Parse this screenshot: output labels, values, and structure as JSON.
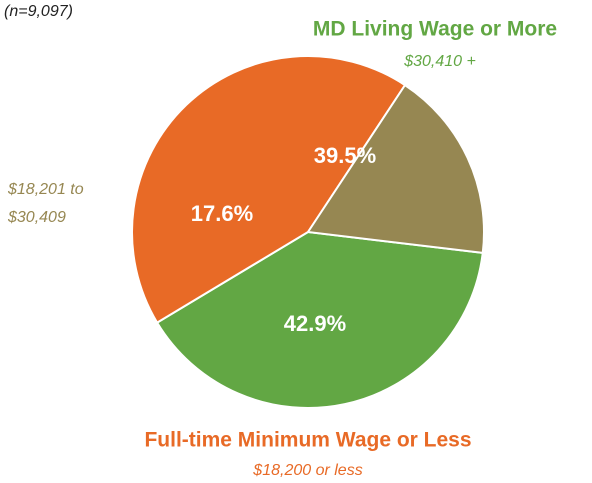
{
  "chart_data": {
    "type": "pie",
    "note": "(n=9,097)",
    "categories": [
      "MD Living Wage or More",
      "Full-time Minimum Wage or Less",
      null
    ],
    "sublabels": [
      "$30,410 +",
      "$18,200 or less",
      "$18,201 to $30,409"
    ],
    "values": [
      39.5,
      42.9,
      17.6
    ],
    "value_labels": [
      "39.5%",
      "42.9%",
      "17.6%"
    ],
    "colors": [
      "#62a744",
      "#e86a26",
      "#968752"
    ]
  }
}
